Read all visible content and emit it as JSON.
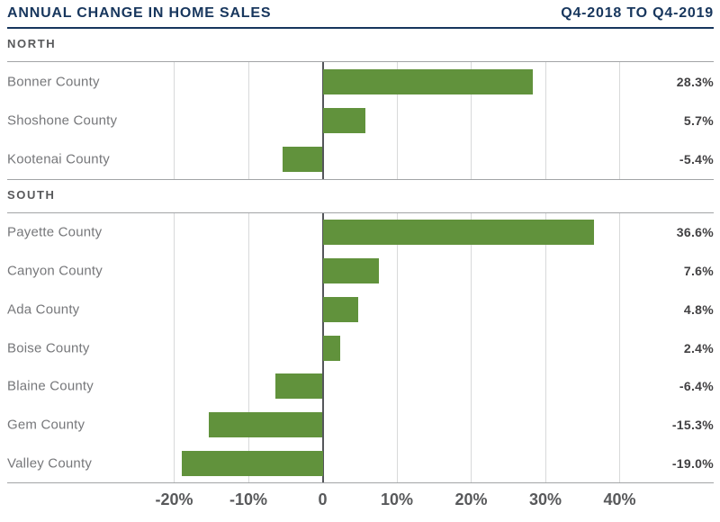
{
  "header": {
    "title": "ANNUAL CHANGE IN HOME SALES",
    "period": "Q4-2018 TO Q4-2019"
  },
  "colors": {
    "navy": "#17365d",
    "bar_green": "#61923c",
    "section_label": "#58595b",
    "category_label": "#76777a",
    "value_label": "#414042",
    "axis_label": "#58595b",
    "gridline": "#d8d9da",
    "zero_line": "#54565a",
    "chart_border": "#a2a4a6",
    "background": "#ffffff"
  },
  "axis": {
    "ticks": [
      -20,
      -10,
      0,
      10,
      20,
      30,
      40
    ],
    "tick_labels": [
      "-20%",
      "-10%",
      "0",
      "10%",
      "20%",
      "30%",
      "40%"
    ],
    "unit": "percent",
    "grid": true,
    "legend": "none"
  },
  "chart_data": [
    {
      "type": "bar",
      "orientation": "horizontal",
      "section": "NORTH",
      "categories": [
        "Bonner County",
        "Shoshone County",
        "Kootenai County"
      ],
      "values": [
        28.3,
        5.7,
        -5.4
      ],
      "value_labels": [
        "28.3%",
        "5.7%",
        "-5.4%"
      ],
      "xlim": [
        -20,
        40
      ],
      "bar_color": "#61923c"
    },
    {
      "type": "bar",
      "orientation": "horizontal",
      "section": "SOUTH",
      "categories": [
        "Payette County",
        "Canyon County",
        "Ada County",
        "Boise County",
        "Blaine County",
        "Gem County",
        "Valley County"
      ],
      "values": [
        36.6,
        7.6,
        4.8,
        2.4,
        -6.4,
        -15.3,
        -19.0
      ],
      "value_labels": [
        "36.6%",
        "7.6%",
        "4.8%",
        "2.4%",
        "-6.4%",
        "-15.3%",
        "-19.0%"
      ],
      "xlim": [
        -20,
        40
      ],
      "bar_color": "#61923c"
    }
  ]
}
